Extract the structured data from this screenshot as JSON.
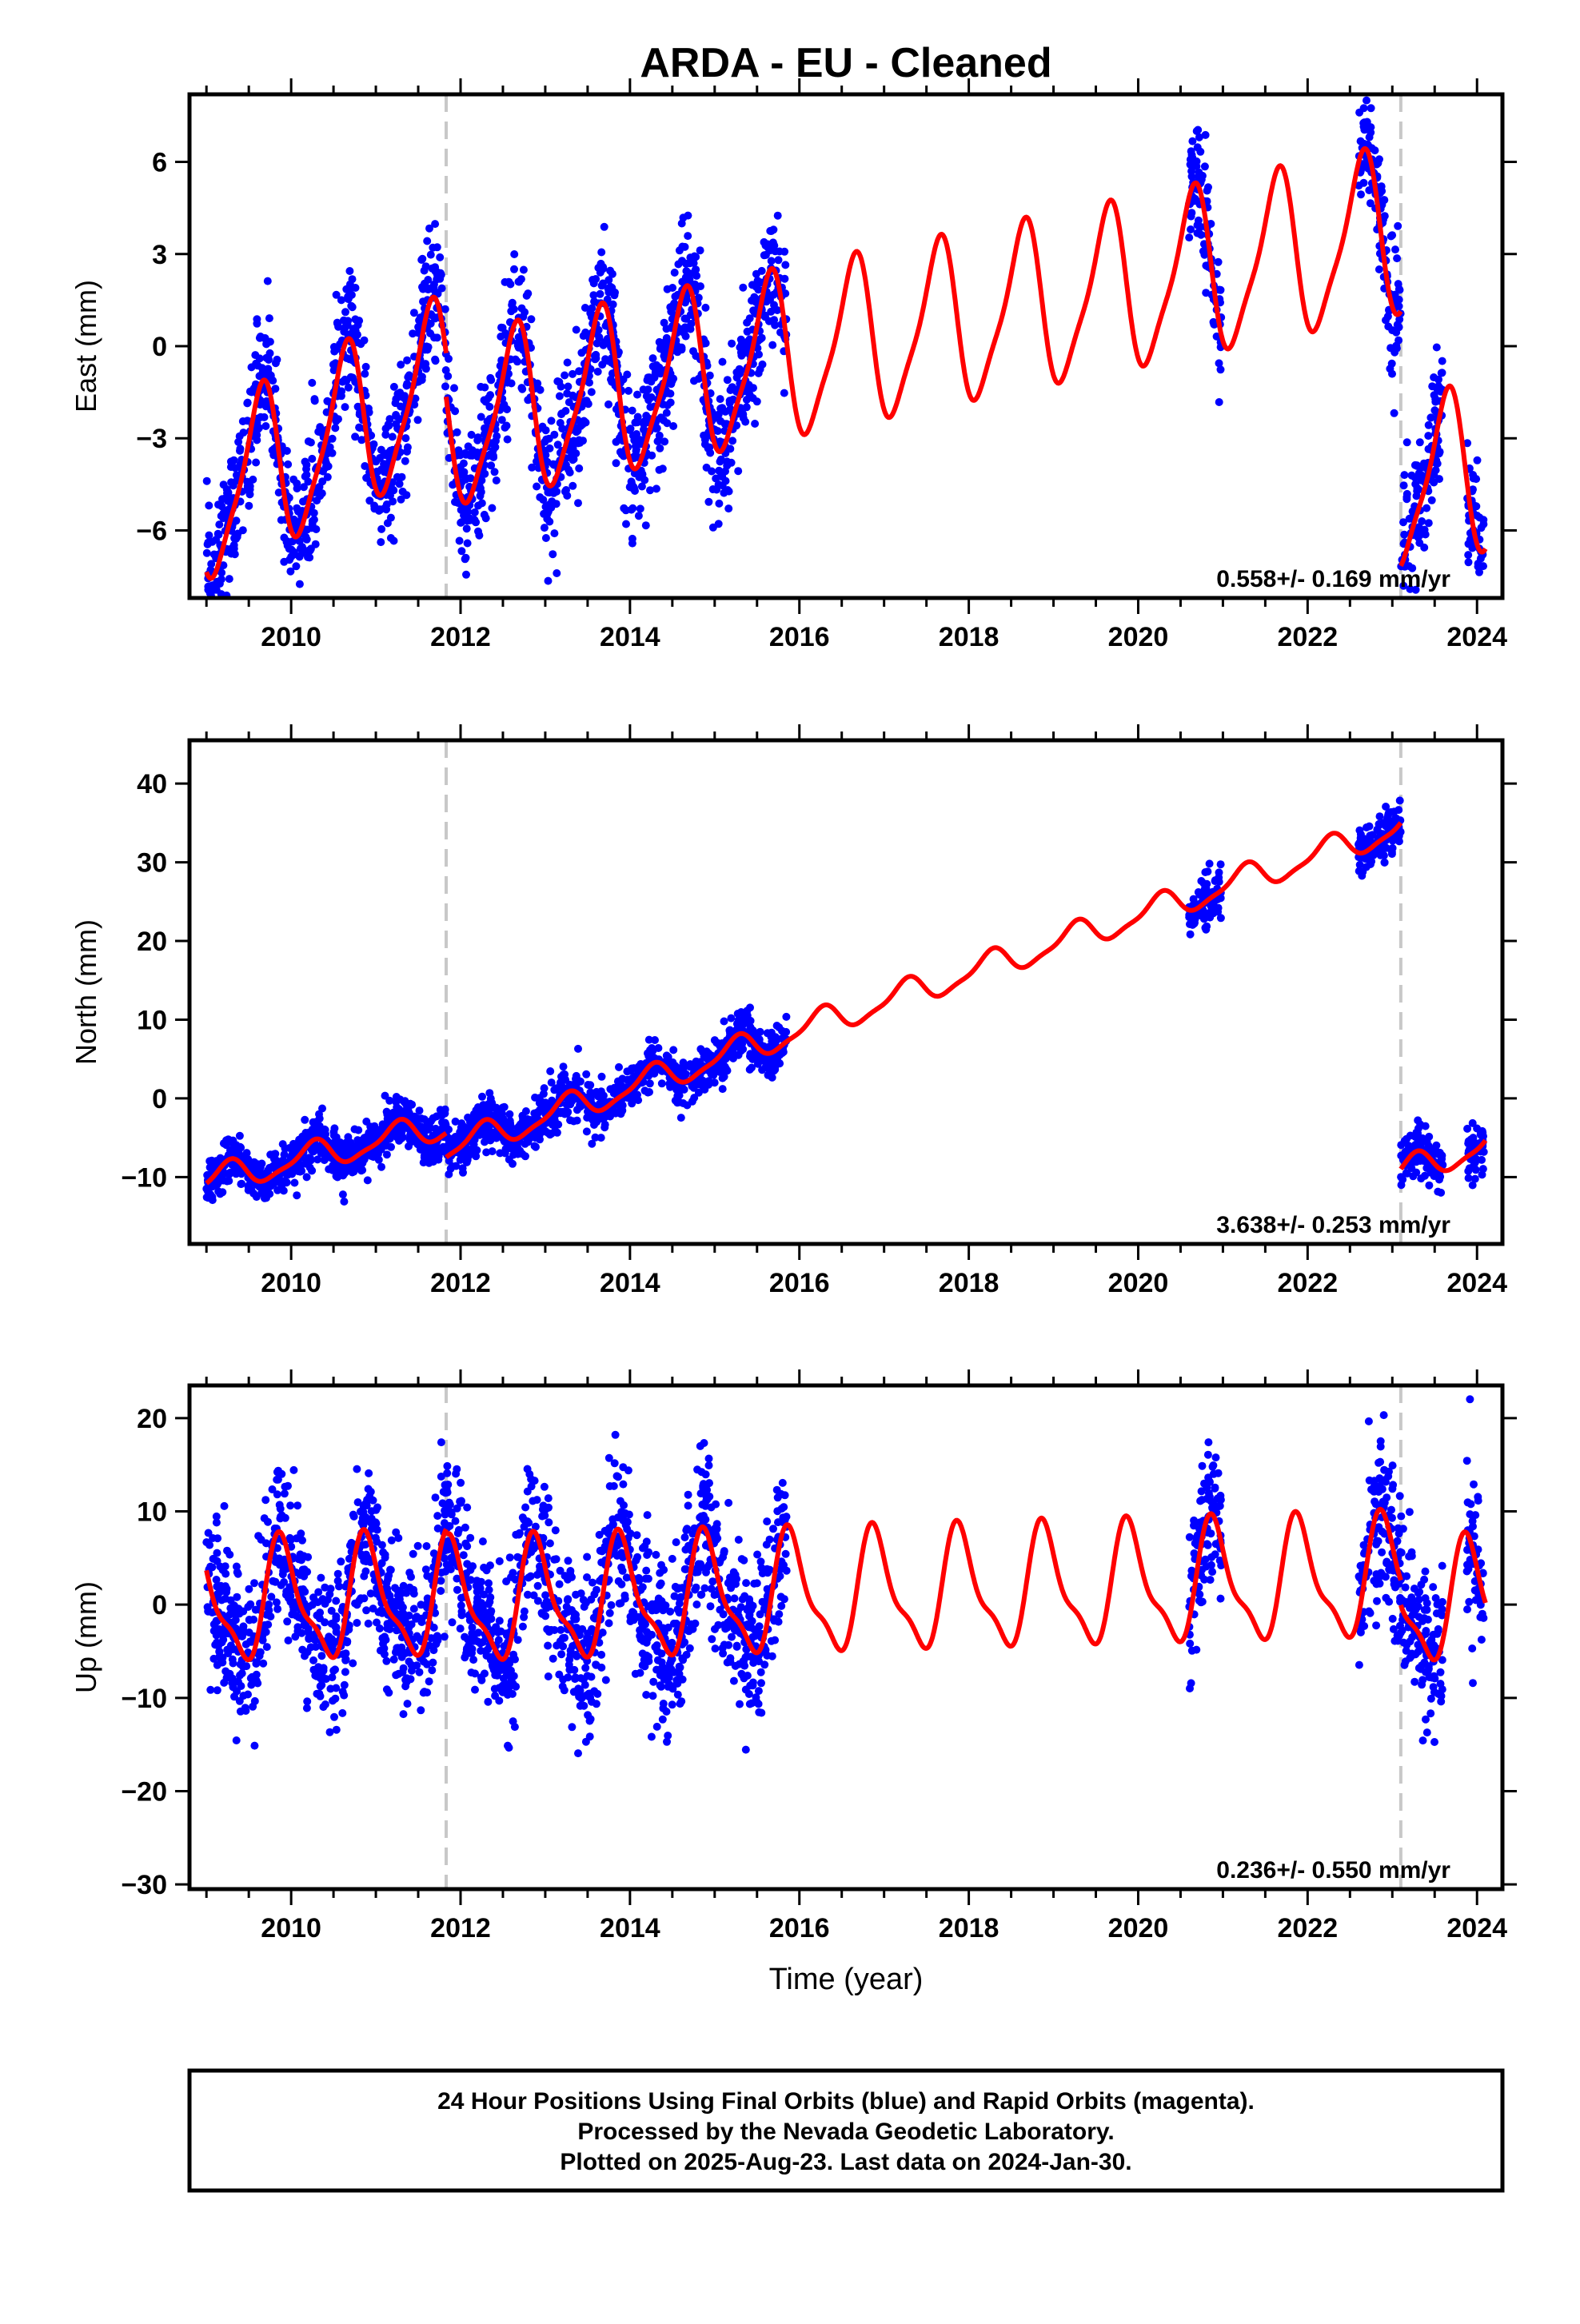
{
  "chart_data": {
    "type": "scatter",
    "title": "ARDA  - EU - Cleaned",
    "xlabel": "Time (year)",
    "xlim": [
      2008.8,
      2024.3
    ],
    "x_ticks": [
      2010,
      2012,
      2014,
      2016,
      2018,
      2020,
      2022,
      2024
    ],
    "break_lines": [
      2011.83,
      2023.1
    ],
    "series_colors": {
      "observations": "#0000ff",
      "model": "#ff0000",
      "break": "#c8c8c8"
    },
    "data_spans": [
      [
        2009.0,
        2015.85
      ],
      [
        2020.6,
        2020.98
      ],
      [
        2022.6,
        2023.6
      ],
      [
        2023.88,
        2024.08
      ]
    ],
    "panels": [
      {
        "ylabel": "East (mm)",
        "ylim": [
          -8.2,
          8.2
        ],
        "y_ticks": [
          -6,
          -3,
          0,
          3,
          6
        ],
        "rate": "0.558+/- 0.169 mm/yr",
        "model": {
          "segments": [
            {
              "from": 2009.0,
              "to": 2011.83,
              "base": -5.0,
              "slope": 1.35
            },
            {
              "from": 2011.83,
              "to": 2023.1,
              "base": -2.6,
              "slope": 0.558
            },
            {
              "from": 2023.1,
              "to": 2024.1,
              "base": -4.6,
              "slope": 0.558
            }
          ],
          "annual_amp": 2.6,
          "annual_phase": 0.38,
          "semiannual_amp": 0.6,
          "semiannual_phase": 0.1
        },
        "scatter_sd": 1.1
      },
      {
        "ylabel": "North (mm)",
        "ylim": [
          -18.5,
          45.5
        ],
        "y_ticks": [
          -10,
          0,
          10,
          20,
          30,
          40
        ],
        "rate": "3.638+/- 0.253 mm/yr",
        "model": {
          "segments": [
            {
              "from": 2009.0,
              "to": 2011.83,
              "base": -10.5,
              "slope": 2.5
            },
            {
              "from": 2011.83,
              "to": 2023.1,
              "base": -6.5,
              "slope": 3.638
            },
            {
              "from": 2023.1,
              "to": 2024.1,
              "base": -9.5,
              "slope": 3.638
            }
          ],
          "annual_amp": 1.7,
          "annual_phase": 0.0,
          "semiannual_amp": 0.5,
          "semiannual_phase": 0.2
        },
        "scatter_sd": 1.5
      },
      {
        "ylabel": "Up (mm)",
        "ylim": [
          -30.5,
          23.5
        ],
        "y_ticks": [
          -30,
          -20,
          -10,
          0,
          10,
          20
        ],
        "rate": "0.236+/- 0.550 mm/yr",
        "model": {
          "segments": [
            {
              "from": 2009.0,
              "to": 2011.83,
              "base": 0.0,
              "slope": 0.236
            },
            {
              "from": 2011.83,
              "to": 2023.1,
              "base": 0.0,
              "slope": 0.236
            },
            {
              "from": 2023.1,
              "to": 2024.1,
              "base": 0.0,
              "slope": 0.236
            }
          ],
          "annual_amp": 6.0,
          "annual_phase": 0.65,
          "semiannual_amp": 2.0,
          "semiannual_phase": 0.2
        },
        "scatter_sd": 4.2
      }
    ]
  },
  "footer": {
    "line1": "24 Hour Positions Using Final Orbits (blue) and Rapid Orbits (magenta).",
    "line2": "Processed by the Nevada Geodetic Laboratory.",
    "line3": "Plotted on 2025-Aug-23. Last data on 2024-Jan-30."
  }
}
